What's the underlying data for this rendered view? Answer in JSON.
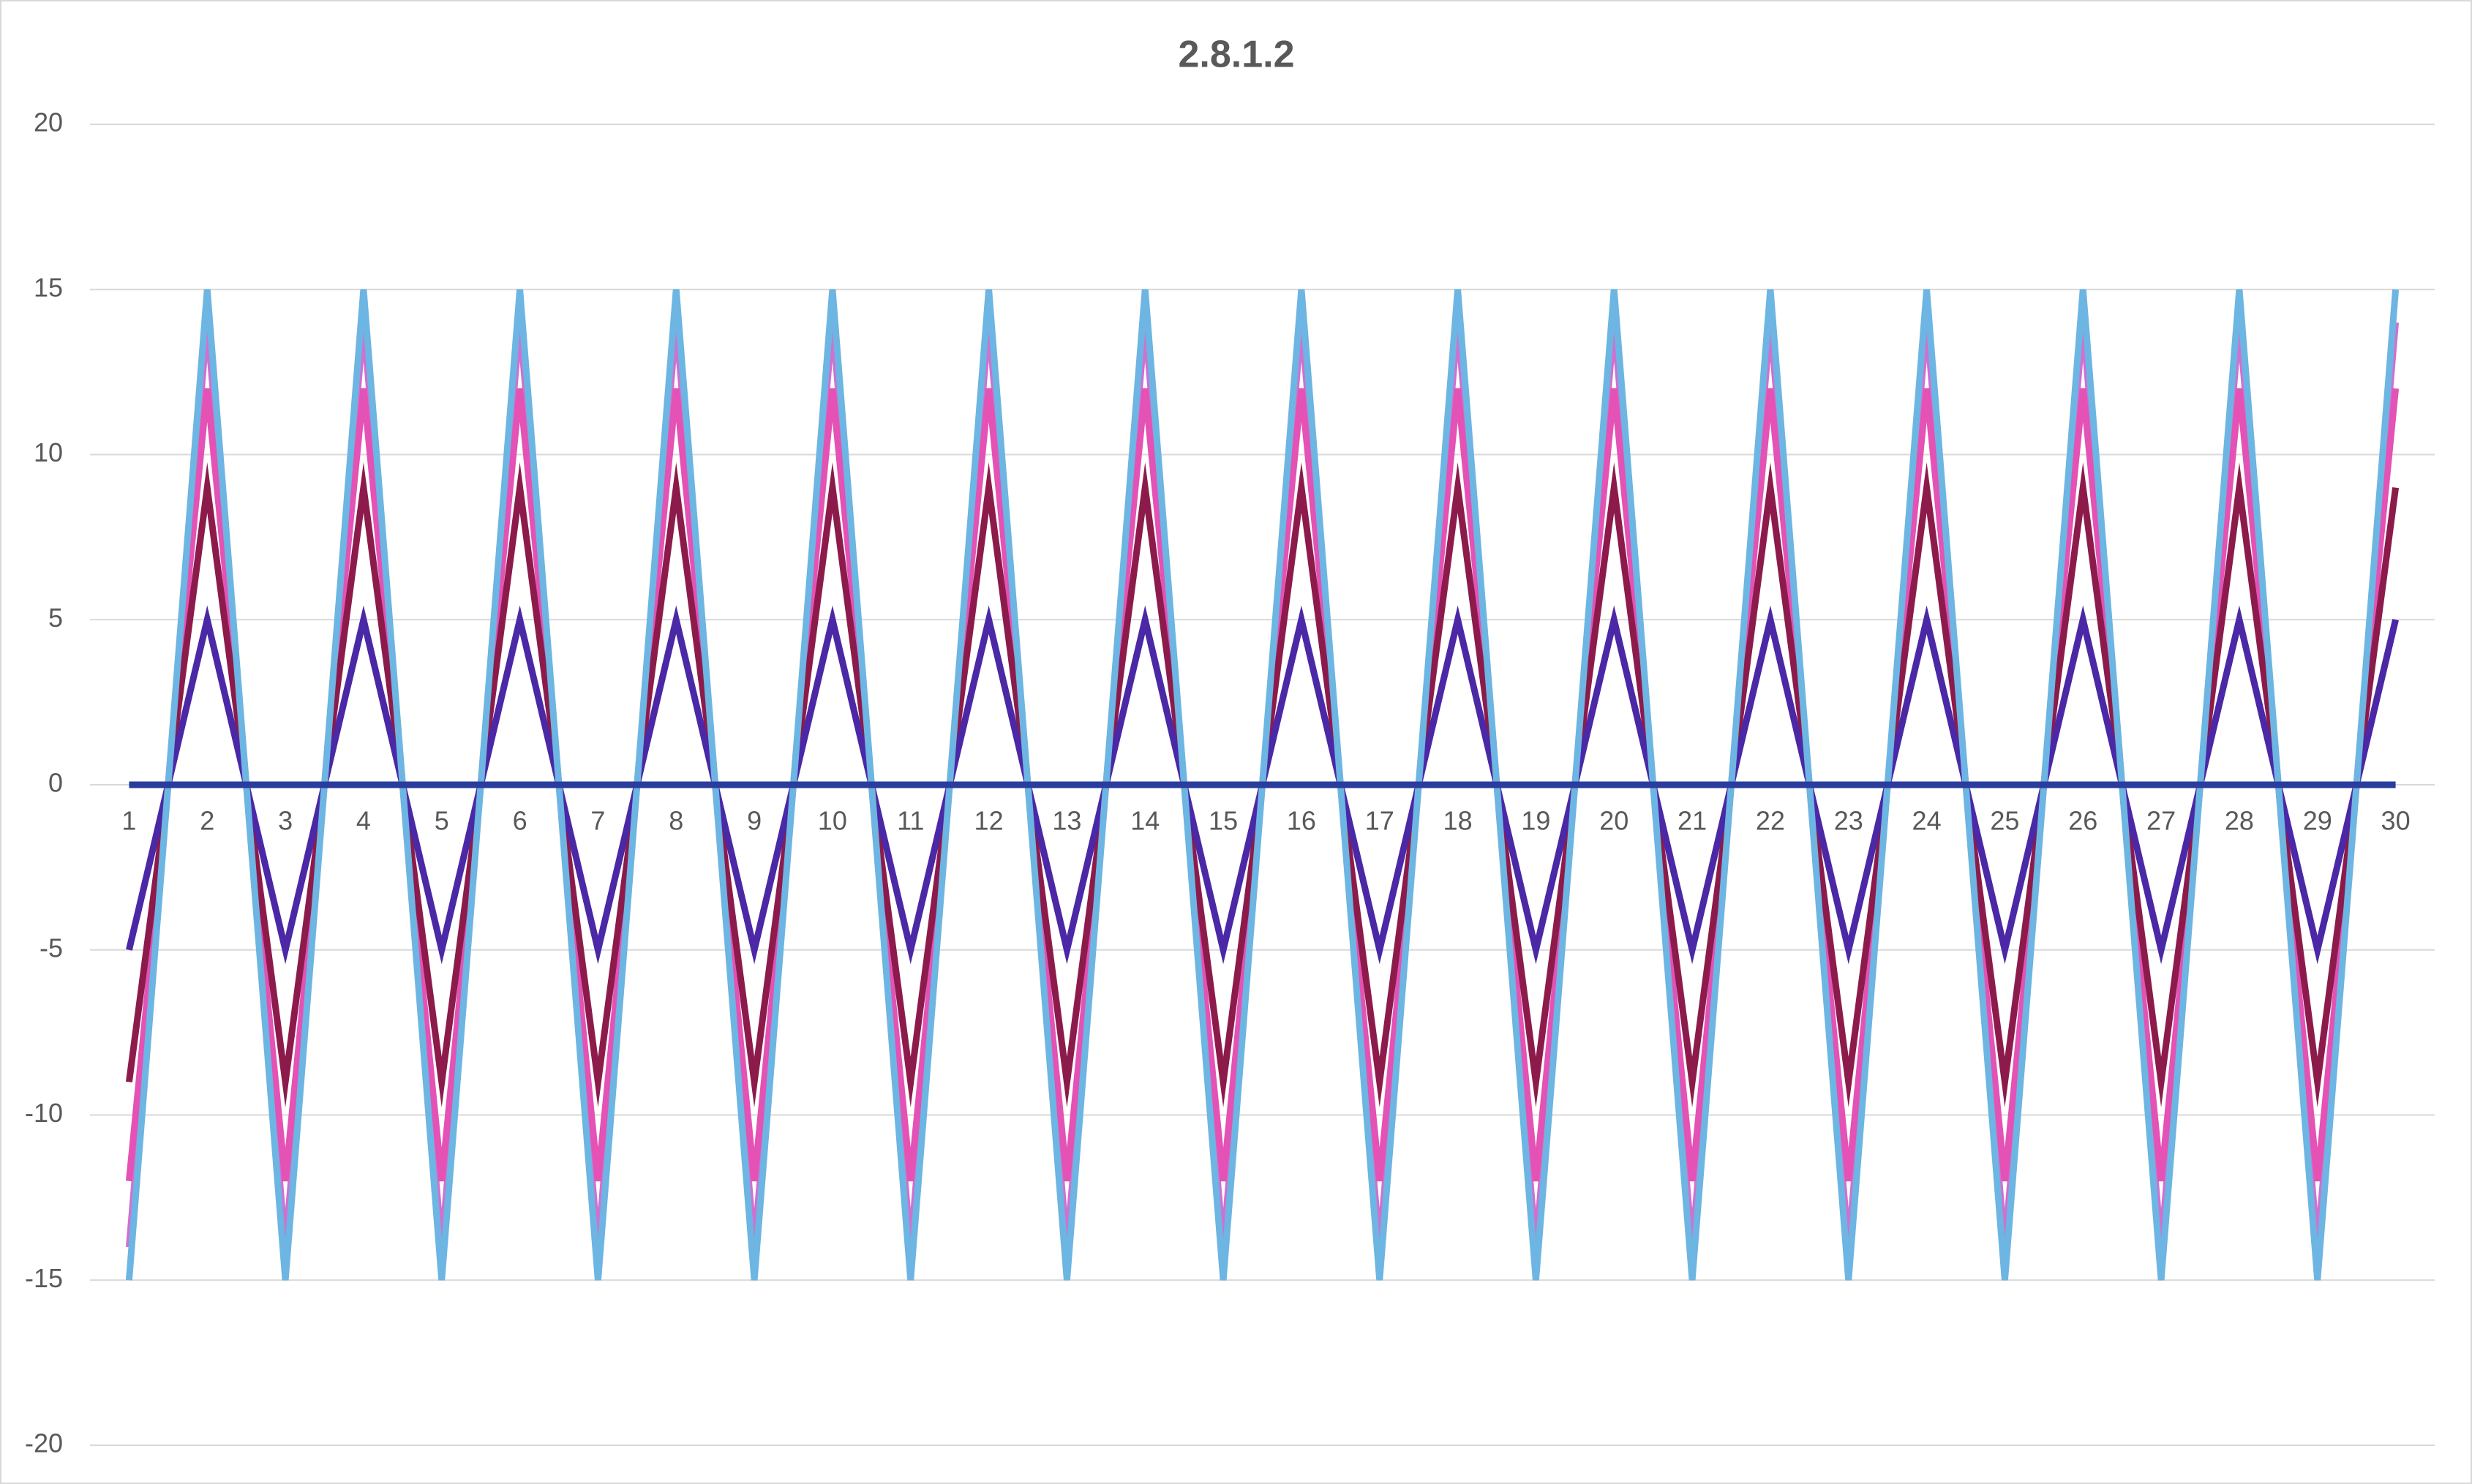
{
  "chart_data": {
    "type": "line",
    "title": "2.8.1.2",
    "categories": [
      "1",
      "2",
      "3",
      "4",
      "5",
      "6",
      "7",
      "8",
      "9",
      "10",
      "11",
      "12",
      "13",
      "14",
      "15",
      "16",
      "17",
      "18",
      "19",
      "20",
      "21",
      "22",
      "23",
      "24",
      "25",
      "26",
      "27",
      "28",
      "29",
      "30"
    ],
    "series": [
      {
        "color": "#d070d0",
        "values": [
          -14,
          14,
          -14,
          14,
          -14,
          14,
          -14,
          14,
          -14,
          14,
          -14,
          14,
          -14,
          14,
          -14,
          14,
          -14,
          14,
          -14,
          14,
          -14,
          14,
          -14,
          14,
          -14,
          14,
          -14,
          14,
          -14,
          14
        ]
      },
      {
        "color": "#e352b4",
        "values": [
          -12,
          12,
          -12,
          12,
          -12,
          12,
          -12,
          12,
          -12,
          12,
          -12,
          12,
          -12,
          12,
          -12,
          12,
          -12,
          12,
          -12,
          12,
          -12,
          12,
          -12,
          12,
          -12,
          12,
          -12,
          12,
          -12,
          12
        ]
      },
      {
        "color": "#8c1b4c",
        "values": [
          -9,
          9,
          -9,
          9,
          -9,
          9,
          -9,
          9,
          -9,
          9,
          -9,
          9,
          -9,
          9,
          -9,
          9,
          -9,
          9,
          -9,
          9,
          -9,
          9,
          -9,
          9,
          -9,
          9,
          -9,
          9,
          -9,
          9
        ]
      },
      {
        "color": "#4a28a6",
        "values": [
          -5,
          5,
          -5,
          5,
          -5,
          5,
          -5,
          5,
          -5,
          5,
          -5,
          5,
          -5,
          5,
          -5,
          5,
          -5,
          5,
          -5,
          5,
          -5,
          5,
          -5,
          5,
          -5,
          5,
          -5,
          5,
          -5,
          5
        ]
      },
      {
        "color": "#6db5e2",
        "values": [
          -15,
          15,
          -15,
          15,
          -15,
          15,
          -15,
          15,
          -15,
          15,
          -15,
          15,
          -15,
          15,
          -15,
          15,
          -15,
          15,
          -15,
          15,
          -15,
          15,
          -15,
          15,
          -15,
          15,
          -15,
          15,
          -15,
          15
        ]
      },
      {
        "color": "#2a3c9c",
        "values": [
          0,
          0,
          0,
          0,
          0,
          0,
          0,
          0,
          0,
          0,
          0,
          0,
          0,
          0,
          0,
          0,
          0,
          0,
          0,
          0,
          0,
          0,
          0,
          0,
          0,
          0,
          0,
          0,
          0,
          0
        ]
      }
    ],
    "ylim": [
      -20,
      20
    ],
    "yticks": [
      -20,
      -15,
      -10,
      -5,
      0,
      5,
      10,
      15,
      20
    ],
    "grid": true
  }
}
